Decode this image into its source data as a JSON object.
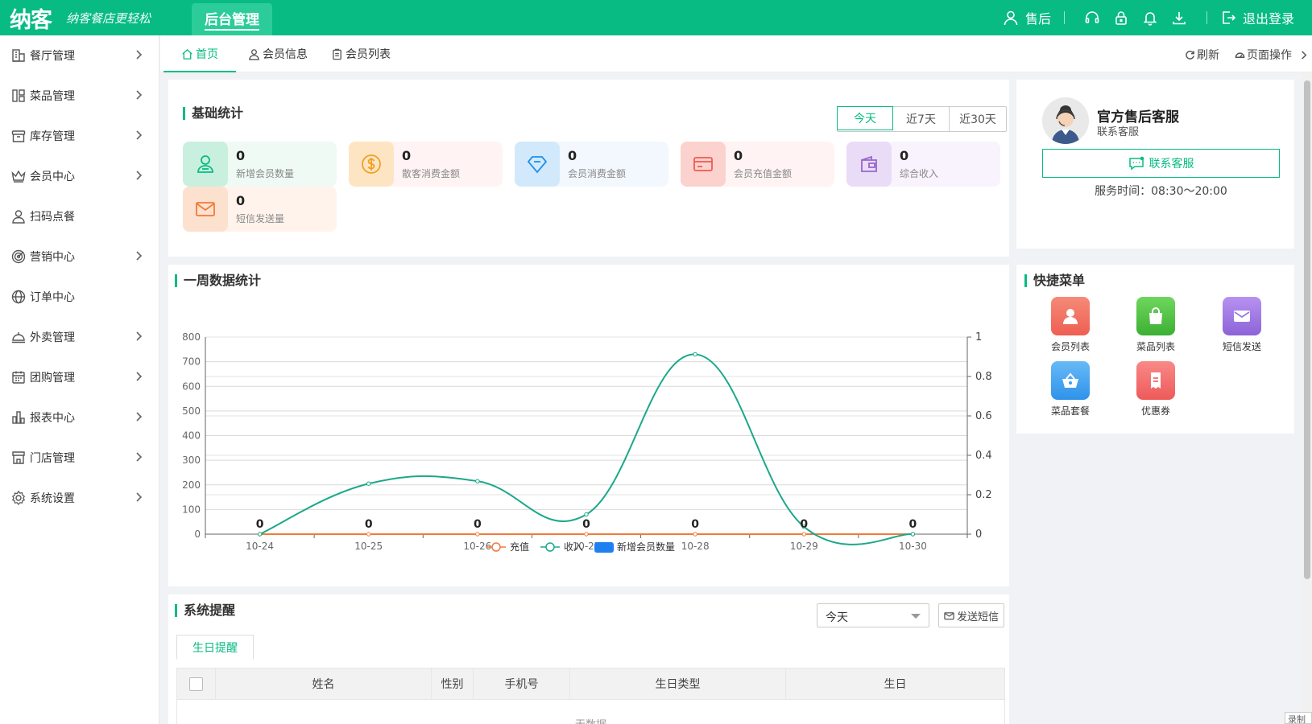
{
  "header": {
    "logo": "纳客",
    "slogan": "纳客餐店更轻松",
    "admin_tab": "后台管理",
    "user": "售后",
    "logout": "退出登录",
    "icons": [
      "headset-icon",
      "lock-icon",
      "bell-icon",
      "download-icon"
    ]
  },
  "sidebar": {
    "items": [
      {
        "label": "餐厅管理",
        "icon": "restaurant-icon",
        "arrow": true
      },
      {
        "label": "菜品管理",
        "icon": "dishes-icon",
        "arrow": true
      },
      {
        "label": "库存管理",
        "icon": "inventory-icon",
        "arrow": true
      },
      {
        "label": "会员中心",
        "icon": "crown-icon",
        "arrow": true
      },
      {
        "label": "扫码点餐",
        "icon": "user-icon",
        "arrow": false
      },
      {
        "label": "营销中心",
        "icon": "target-icon",
        "arrow": true
      },
      {
        "label": "订单中心",
        "icon": "globe-icon",
        "arrow": false
      },
      {
        "label": "外卖管理",
        "icon": "takeout-icon",
        "arrow": true
      },
      {
        "label": "团购管理",
        "icon": "calendar-icon",
        "arrow": true
      },
      {
        "label": "报表中心",
        "icon": "report-icon",
        "arrow": true
      },
      {
        "label": "门店管理",
        "icon": "store-icon",
        "arrow": true
      },
      {
        "label": "系统设置",
        "icon": "gear-icon",
        "arrow": true
      }
    ]
  },
  "tabs": {
    "items": [
      {
        "label": "首页",
        "icon": "home-icon"
      },
      {
        "label": "会员信息",
        "icon": "user-icon"
      },
      {
        "label": "会员列表",
        "icon": "clipboard-icon"
      }
    ],
    "refresh": "刷新",
    "page_ops": "页面操作"
  },
  "basic_stats": {
    "title": "基础统计",
    "ranges": [
      "今天",
      "近7天",
      "近30天"
    ],
    "active_range": "今天",
    "items": [
      {
        "value": "0",
        "label": "新增会员数量",
        "icon": "add-user-icon",
        "color": "#07bb83"
      },
      {
        "value": "0",
        "label": "散客消费金额",
        "icon": "coin-icon",
        "color": "#f0a020"
      },
      {
        "value": "0",
        "label": "会员消费金额",
        "icon": "diamond-icon",
        "color": "#1e90e8"
      },
      {
        "value": "0",
        "label": "会员充值金额",
        "icon": "card-icon",
        "color": "#ee5a50"
      },
      {
        "value": "0",
        "label": "综合收入",
        "icon": "wallet-icon",
        "color": "#9966cc"
      },
      {
        "value": "0",
        "label": "短信发送量",
        "icon": "mail-icon",
        "color": "#f07a3a"
      }
    ]
  },
  "customer_service": {
    "title": "官方售后客服",
    "subtitle": "联系客服",
    "button": "联系客服",
    "hours": "服务时间：08:30～20:00"
  },
  "weekly": {
    "title": "一周数据统计"
  },
  "chart_data": {
    "type": "line",
    "x": [
      "10-24",
      "10-25",
      "10-26",
      "10-27",
      "10-28",
      "10-29",
      "10-30"
    ],
    "series": [
      {
        "name": "充值",
        "axis": "left",
        "color": "#f07a3a",
        "values": [
          0,
          0,
          0,
          0,
          0,
          0,
          0
        ]
      },
      {
        "name": "收入",
        "axis": "left",
        "color": "#1aa88a",
        "values": [
          0,
          205,
          215,
          80,
          730,
          30,
          0
        ]
      },
      {
        "name": "新增会员数量",
        "type": "bar",
        "axis": "right",
        "color": "#1e7ff0",
        "values": [
          0,
          0,
          0,
          0,
          0,
          0,
          0
        ],
        "labels": [
          "0",
          "0",
          "0",
          "0",
          "0",
          "0",
          "0"
        ]
      }
    ],
    "ylim": [
      0,
      800
    ],
    "yticks": [
      "0",
      "100",
      "200",
      "300",
      "400",
      "500",
      "600",
      "700",
      "800"
    ],
    "y2lim": [
      0,
      1
    ],
    "y2ticks": [
      "0",
      "0.2",
      "0.4",
      "0.6",
      "0.8",
      "1"
    ],
    "legend": "bottom",
    "grid": true
  },
  "quick_menu": {
    "title": "快捷菜单",
    "items": [
      {
        "label": "会员列表",
        "icon": "member-icon",
        "color": "#f06a5a"
      },
      {
        "label": "菜品列表",
        "icon": "bag-icon",
        "color": "#4cc040"
      },
      {
        "label": "短信发送",
        "icon": "envelope-icon",
        "color": "#9a72e0"
      },
      {
        "label": "菜品套餐",
        "icon": "basket-icon",
        "color": "#3aa0f0"
      },
      {
        "label": "优惠券",
        "icon": "coupon-icon",
        "color": "#f06a6a"
      }
    ]
  },
  "reminders": {
    "title": "系统提醒",
    "select_value": "今天",
    "sms_button": "发送短信",
    "sub_tab": "生日提醒",
    "columns": [
      "姓名",
      "性别",
      "手机号",
      "生日类型",
      "生日"
    ],
    "empty": "无数据"
  },
  "corner_tag": "录制"
}
